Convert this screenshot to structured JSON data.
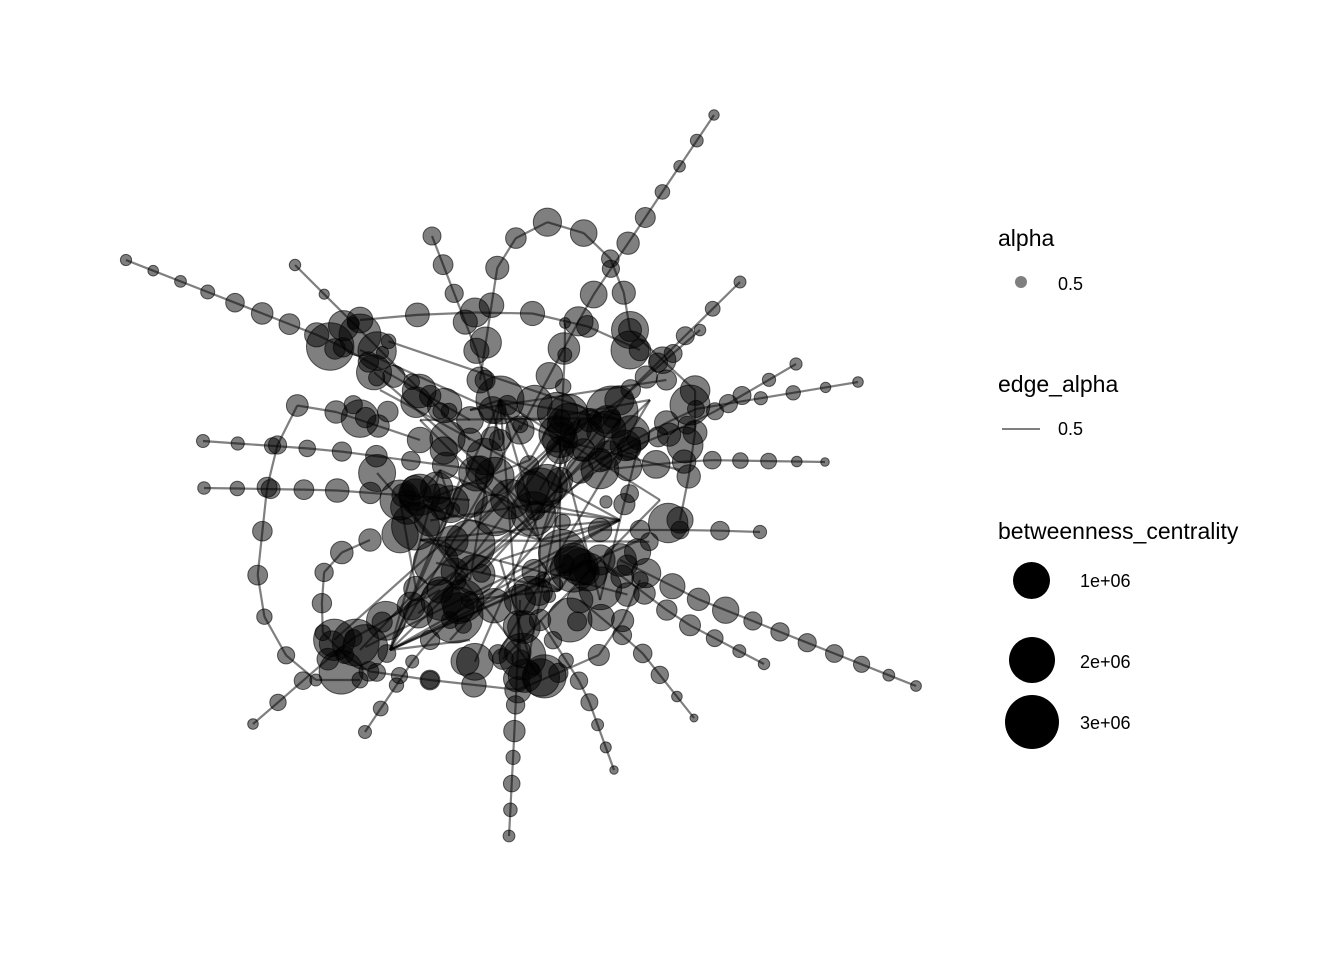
{
  "legend": {
    "alpha": {
      "title": "alpha",
      "key_label": "0.5",
      "value": 0.5
    },
    "edge_alpha": {
      "title": "edge_alpha",
      "key_label": "0.5",
      "value": 0.5
    },
    "betweenness": {
      "title": "betweenness_centrality",
      "items": [
        {
          "label": "1e+06",
          "value": 1000000
        },
        {
          "label": "2e+06",
          "value": 2000000
        },
        {
          "label": "3e+06",
          "value": 3000000
        }
      ]
    }
  },
  "colors": {
    "node": "#000000",
    "edge": "#000000",
    "background": "#ffffff"
  }
}
